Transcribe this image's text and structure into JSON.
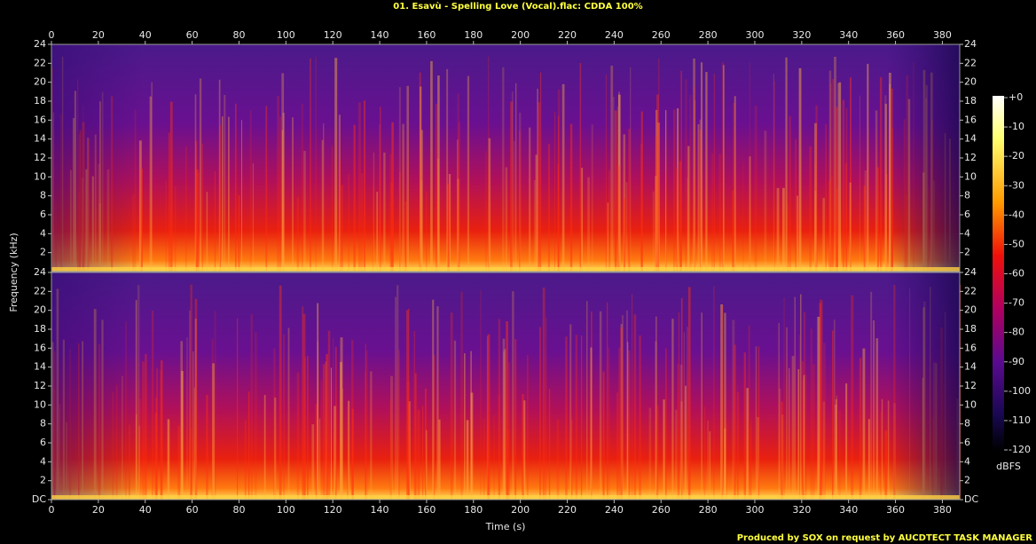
{
  "title": "01. Esavù - Spelling Love (Vocal).flac: CDDA 100%",
  "footer": "Produced by SOX on request by AUCDTECT TASK MANAGER",
  "colorbar": {
    "label": "dBFS",
    "lim": [
      -120,
      0
    ],
    "ticks": [
      {
        "value": 0,
        "label": "+0"
      },
      -10,
      -20,
      -30,
      -40,
      -50,
      -60,
      -70,
      -80,
      -90,
      -100,
      -110,
      -120
    ]
  },
  "chart_data": [
    {
      "type": "spectrogram",
      "ylabel": "Frequency (kHz)",
      "xaxis": "top",
      "xlim": [
        0,
        387.4
      ],
      "xticks": [
        0,
        20,
        40,
        60,
        80,
        100,
        120,
        140,
        160,
        180,
        200,
        220,
        240,
        260,
        280,
        300,
        320,
        340,
        360,
        380
      ],
      "ylim": [
        0,
        24
      ],
      "yticks": [
        2,
        4,
        6,
        8,
        10,
        12,
        14,
        16,
        18,
        20,
        22,
        24
      ]
    },
    {
      "type": "spectrogram",
      "xlabel": "Time (s)",
      "xaxis": "bottom",
      "xlim": [
        0,
        387.4
      ],
      "xticks": [
        0,
        20,
        40,
        60,
        80,
        100,
        120,
        140,
        160,
        180,
        200,
        220,
        240,
        260,
        280,
        300,
        320,
        340,
        360,
        380
      ],
      "ylim": [
        0,
        24
      ],
      "yticks": [
        {
          "value": 0,
          "label": "DC"
        },
        2,
        4,
        6,
        8,
        10,
        12,
        14,
        16,
        18,
        20,
        22,
        24
      ]
    }
  ]
}
